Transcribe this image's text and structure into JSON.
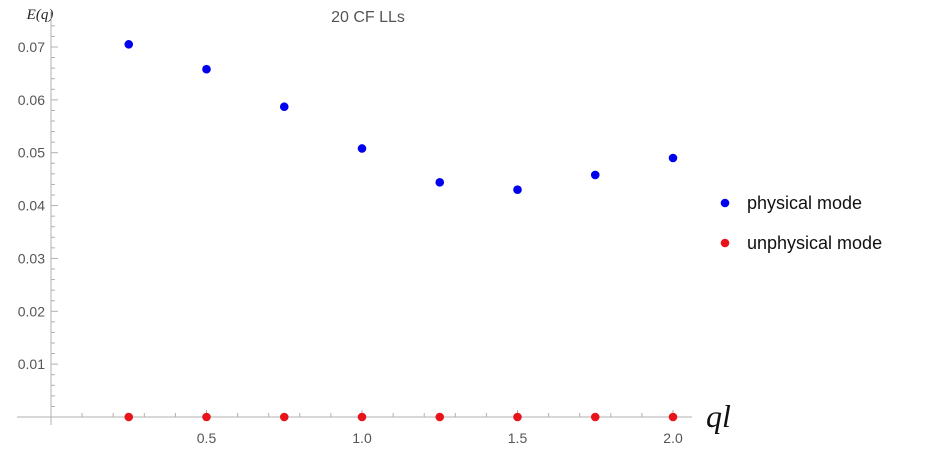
{
  "chart_data": {
    "type": "scatter",
    "title": "20 CF LLs",
    "xlabel": "ql",
    "ylabel": "E(q)",
    "xlim": [
      0.0,
      2.0
    ],
    "ylim": [
      0.0,
      0.075
    ],
    "x_ticks_major": [
      0.5,
      1.0,
      1.5,
      2.0
    ],
    "x_tick_labels": [
      "0.5",
      "1.0",
      "1.5",
      "2.0"
    ],
    "y_ticks_major": [
      0.01,
      0.02,
      0.03,
      0.04,
      0.05,
      0.06,
      0.07
    ],
    "y_tick_labels": [
      "0.01",
      "0.02",
      "0.03",
      "0.04",
      "0.05",
      "0.06",
      "0.07"
    ],
    "grid": false,
    "legend_position": "right",
    "series": [
      {
        "name": "physical mode",
        "color": "#0000ee",
        "x": [
          0.25,
          0.5,
          0.75,
          1.0,
          1.25,
          1.5,
          1.75,
          2.0
        ],
        "y": [
          0.0705,
          0.0658,
          0.0587,
          0.0508,
          0.0444,
          0.043,
          0.0458,
          0.049
        ]
      },
      {
        "name": "unphysical mode",
        "color": "#e8141b",
        "x": [
          0.25,
          0.5,
          0.75,
          1.0,
          1.25,
          1.5,
          1.75,
          2.0
        ],
        "y": [
          0.0,
          0.0,
          0.0,
          0.0,
          0.0,
          0.0,
          0.0,
          0.0
        ]
      }
    ]
  }
}
